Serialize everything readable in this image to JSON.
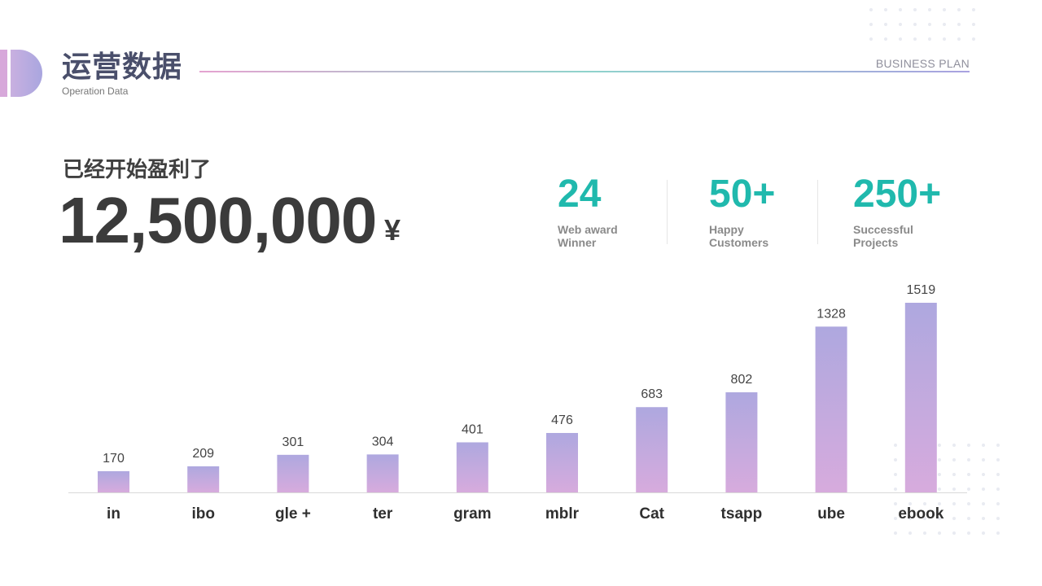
{
  "header": {
    "title": "运营数据",
    "subtitle": "Operation Data",
    "brand": "BUSINESS PLAN"
  },
  "summary": {
    "headline": "已经开始盈利了",
    "amount": "12,500,000",
    "currency": "¥"
  },
  "stats": [
    {
      "value": "24",
      "label_line1": "Web award",
      "label_line2": "Winner"
    },
    {
      "value": "50+",
      "label_line1": "Happy",
      "label_line2": "Customers"
    },
    {
      "value": "250+",
      "label_line1": "Successful",
      "label_line2": "Projects"
    }
  ],
  "colors": {
    "accent": "#20b9ad",
    "bar_top": "#aea8df",
    "bar_bottom": "#d7abdd",
    "title": "#4a4f6b"
  },
  "chart_data": {
    "type": "bar",
    "categories": [
      "in",
      "ibo",
      "gle +",
      "ter",
      "gram",
      "mblr",
      "Cat",
      "tsapp",
      "ube",
      "ebook"
    ],
    "values": [
      170,
      209,
      301,
      304,
      401,
      476,
      683,
      802,
      1328,
      1519
    ],
    "title": "",
    "xlabel": "",
    "ylabel": "",
    "ylim": [
      0,
      1519
    ],
    "grid": false,
    "data_labels": true
  }
}
